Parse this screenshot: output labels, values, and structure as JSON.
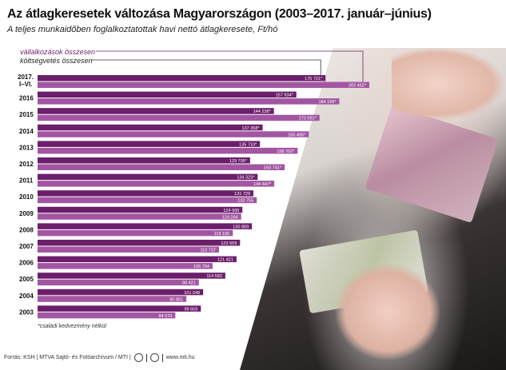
{
  "title": "Az átlagkeresetek változása Magyarországon (2003–2017. január–június)",
  "subtitle": "A teljes munkaidőben foglalkoztatottak havi nettó átlagkeresete, Ft/hó",
  "footnote": "*családi kedvezmény nélkül",
  "source": {
    "text": "Forrás: KSH | MTVA Sajtó- és Fotóarchívum / MTI |",
    "website": "www.mti.hu",
    "logo_icons": [
      "mtva-logo-icon",
      "mti-logo-icon"
    ]
  },
  "colors": {
    "vallalkozasok": "#6b1f6b",
    "koltsegvetes": "#a256a2"
  },
  "chart_data": {
    "type": "bar",
    "orientation": "horizontal",
    "categories": [
      "2017. I–VI.",
      "2016",
      "2015",
      "2014",
      "2013",
      "2012",
      "2011",
      "2010",
      "2009",
      "2008",
      "2007",
      "2006",
      "2005",
      "2004",
      "2003"
    ],
    "series": [
      {
        "name": "vállalkozások összesen",
        "values": [
          175721,
          157934,
          144238,
          137358,
          135710,
          129705,
          134323,
          131729,
          124998,
          130809,
          123559,
          121421,
          114583,
          101048,
          99659
        ],
        "labels": [
          "175 721*",
          "157 934*",
          "144 238*",
          "137 358*",
          "135 710*",
          "129 705*",
          "134 323*",
          "131 729",
          "124 998",
          "130 809",
          "123 559",
          "121 421",
          "114 583",
          "101 048",
          "99 659"
        ]
      },
      {
        "name": "költségvetés összesen",
        "values": [
          202452,
          184155,
          172091,
          165495,
          158702,
          150741,
          144447,
          133755,
          124264,
          119155,
          110737,
          106794,
          98421,
          90801,
          84070
        ],
        "labels": [
          "202 452*",
          "184 155*",
          "172 091*",
          "165 495*",
          "158 702*",
          "150 741*",
          "144 447*",
          "133 755",
          "124 264",
          "119 155",
          "110 737",
          "106 794",
          "98 421",
          "90 801",
          "84 070"
        ]
      }
    ],
    "xlim": [
      0,
      202452
    ],
    "grid": false,
    "legend_placement": "top-left"
  }
}
